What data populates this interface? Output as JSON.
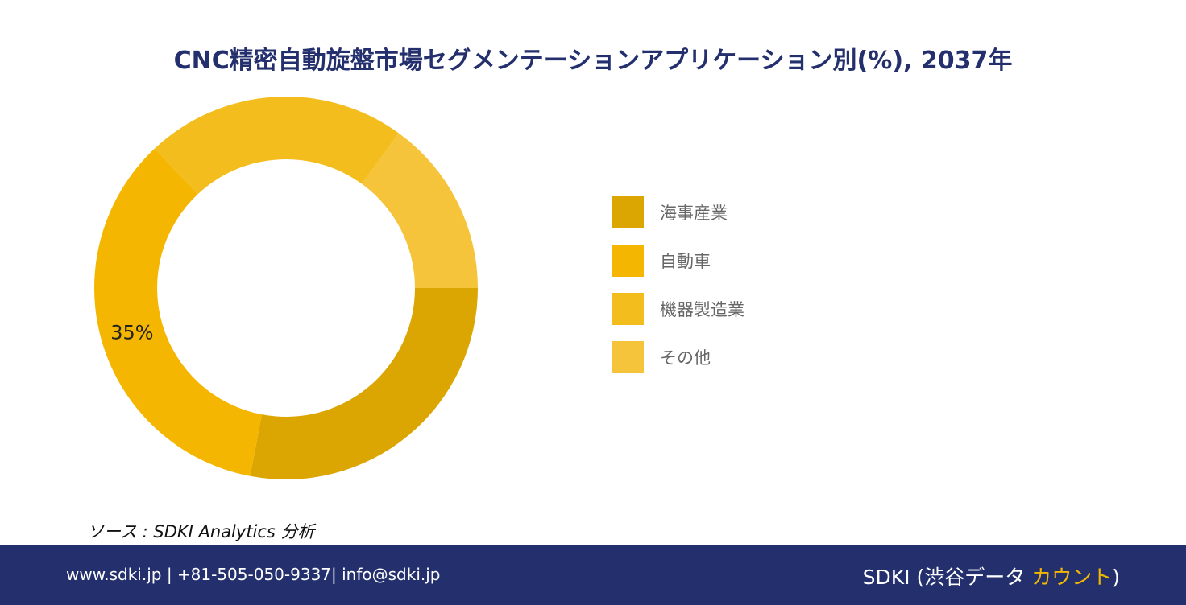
{
  "colors": {
    "footer_bg": "#24306d",
    "accent": "#f3b800"
  },
  "footer": {
    "contact": "www.sdki.jp | +81-505-050-9337| info@sdki.jp",
    "logo_main": "SDKI (渋谷データ ",
    "logo_accent": "カウント",
    "logo_end": ")"
  },
  "source": "ソース : SDKI Analytics 分析",
  "chart_data": {
    "type": "pie",
    "style": "donut",
    "title": "CNC精密自動旋盤市場セグメンテーションアプリケーション別(%), 2037年",
    "categories": [
      "海事産業",
      "自動車",
      "機器製造業",
      "その他"
    ],
    "values": [
      28,
      35,
      22,
      15
    ],
    "colors": [
      "#dba502",
      "#f4b600",
      "#f3bd1d",
      "#f5c43a"
    ],
    "data_labels": [
      null,
      "35%",
      null,
      null
    ],
    "legend": "right"
  }
}
